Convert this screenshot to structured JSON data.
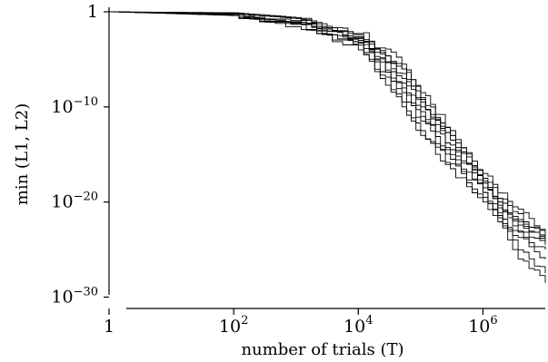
{
  "chart_data": {
    "type": "line",
    "title": "",
    "xlabel": "number of trials (T)",
    "ylabel": "min (L1, L2)",
    "x_scale": "log",
    "y_scale": "log",
    "xlim": [
      1,
      10000000
    ],
    "ylim": [
      1e-31,
      3
    ],
    "grid": false,
    "legend": "none",
    "line_color": "#000000",
    "x_ticks": [
      {
        "value": 1,
        "base": "1",
        "exp": ""
      },
      {
        "value": 100,
        "base": "10",
        "exp": "2"
      },
      {
        "value": 10000,
        "base": "10",
        "exp": "4"
      },
      {
        "value": 1000000,
        "base": "10",
        "exp": "6"
      }
    ],
    "y_ticks": [
      {
        "value": 1,
        "base": "1",
        "exp": ""
      },
      {
        "value": 1e-10,
        "base": "10",
        "exp": "−10"
      },
      {
        "value": 1e-20,
        "base": "10",
        "exp": "−20"
      },
      {
        "value": 1e-30,
        "base": "10",
        "exp": "−30"
      }
    ],
    "series": [
      {
        "points": [
          [
            1,
            0
          ],
          [
            100,
            -0.2
          ],
          [
            1000,
            -0.7
          ],
          [
            10000,
            -2.5
          ],
          [
            50000,
            -6
          ],
          [
            100000,
            -9
          ],
          [
            300000,
            -13
          ],
          [
            1000000,
            -17.5
          ],
          [
            3000000,
            -21
          ],
          [
            10000000,
            -23.5
          ]
        ]
      },
      {
        "points": [
          [
            1,
            0
          ],
          [
            100,
            -0.3
          ],
          [
            1000,
            -0.9
          ],
          [
            10000,
            -2.8
          ],
          [
            50000,
            -7.5
          ],
          [
            100000,
            -10.5
          ],
          [
            300000,
            -14.5
          ],
          [
            1000000,
            -18
          ],
          [
            3000000,
            -22
          ],
          [
            10000000,
            -24.5
          ]
        ]
      },
      {
        "points": [
          [
            1,
            0
          ],
          [
            100,
            -0.2
          ],
          [
            1000,
            -1.0
          ],
          [
            10000,
            -3.2
          ],
          [
            50000,
            -8.5
          ],
          [
            100000,
            -11.5
          ],
          [
            300000,
            -15.5
          ],
          [
            1000000,
            -19
          ],
          [
            3000000,
            -23
          ],
          [
            10000000,
            -26
          ]
        ]
      },
      {
        "points": [
          [
            1,
            0
          ],
          [
            100,
            -0.1
          ],
          [
            1000,
            -0.6
          ],
          [
            10000,
            -2.2
          ],
          [
            50000,
            -5.5
          ],
          [
            100000,
            -8.5
          ],
          [
            300000,
            -12.5
          ],
          [
            1000000,
            -17
          ],
          [
            3000000,
            -20.5
          ],
          [
            10000000,
            -23
          ]
        ]
      },
      {
        "points": [
          [
            1,
            0
          ],
          [
            100,
            -0.3
          ],
          [
            1000,
            -1.2
          ],
          [
            10000,
            -3.5
          ],
          [
            50000,
            -9.5
          ],
          [
            100000,
            -12.5
          ],
          [
            300000,
            -16
          ],
          [
            1000000,
            -19.5
          ],
          [
            3000000,
            -24
          ],
          [
            10000000,
            -27.5
          ]
        ]
      },
      {
        "points": [
          [
            1,
            0
          ],
          [
            100,
            -0.4
          ],
          [
            1000,
            -1.3
          ],
          [
            10000,
            -4.0
          ],
          [
            50000,
            -10
          ],
          [
            100000,
            -13
          ],
          [
            300000,
            -16.5
          ],
          [
            1000000,
            -20
          ],
          [
            3000000,
            -23.5
          ],
          [
            10000000,
            -25
          ]
        ]
      },
      {
        "points": [
          [
            1,
            0
          ],
          [
            100,
            -0.2
          ],
          [
            1000,
            -0.8
          ],
          [
            10000,
            -2.6
          ],
          [
            50000,
            -6.5
          ],
          [
            100000,
            -9.5
          ],
          [
            300000,
            -13.5
          ],
          [
            1000000,
            -18.5
          ],
          [
            3000000,
            -22.5
          ],
          [
            10000000,
            -24
          ]
        ]
      },
      {
        "points": [
          [
            1,
            0
          ],
          [
            100,
            -0.2
          ],
          [
            1000,
            -0.9
          ],
          [
            10000,
            -3.0
          ],
          [
            50000,
            -7
          ],
          [
            100000,
            -10
          ],
          [
            300000,
            -14
          ],
          [
            1000000,
            -18
          ],
          [
            3000000,
            -21.5
          ],
          [
            10000000,
            -23.8
          ]
        ]
      },
      {
        "points": [
          [
            1,
            0
          ],
          [
            100,
            -0.3
          ],
          [
            1000,
            -1.1
          ],
          [
            10000,
            -3.3
          ],
          [
            50000,
            -8
          ],
          [
            100000,
            -11
          ],
          [
            300000,
            -15
          ],
          [
            1000000,
            -19
          ],
          [
            3000000,
            -25
          ],
          [
            10000000,
            -28.5
          ]
        ]
      },
      {
        "points": [
          [
            1,
            0
          ],
          [
            100,
            -0.2
          ],
          [
            1000,
            -0.7
          ],
          [
            10000,
            -2.4
          ],
          [
            50000,
            -6
          ],
          [
            100000,
            -9.2
          ],
          [
            300000,
            -13
          ],
          [
            1000000,
            -17.8
          ],
          [
            3000000,
            -21.8
          ],
          [
            10000000,
            -24.2
          ]
        ]
      }
    ]
  }
}
